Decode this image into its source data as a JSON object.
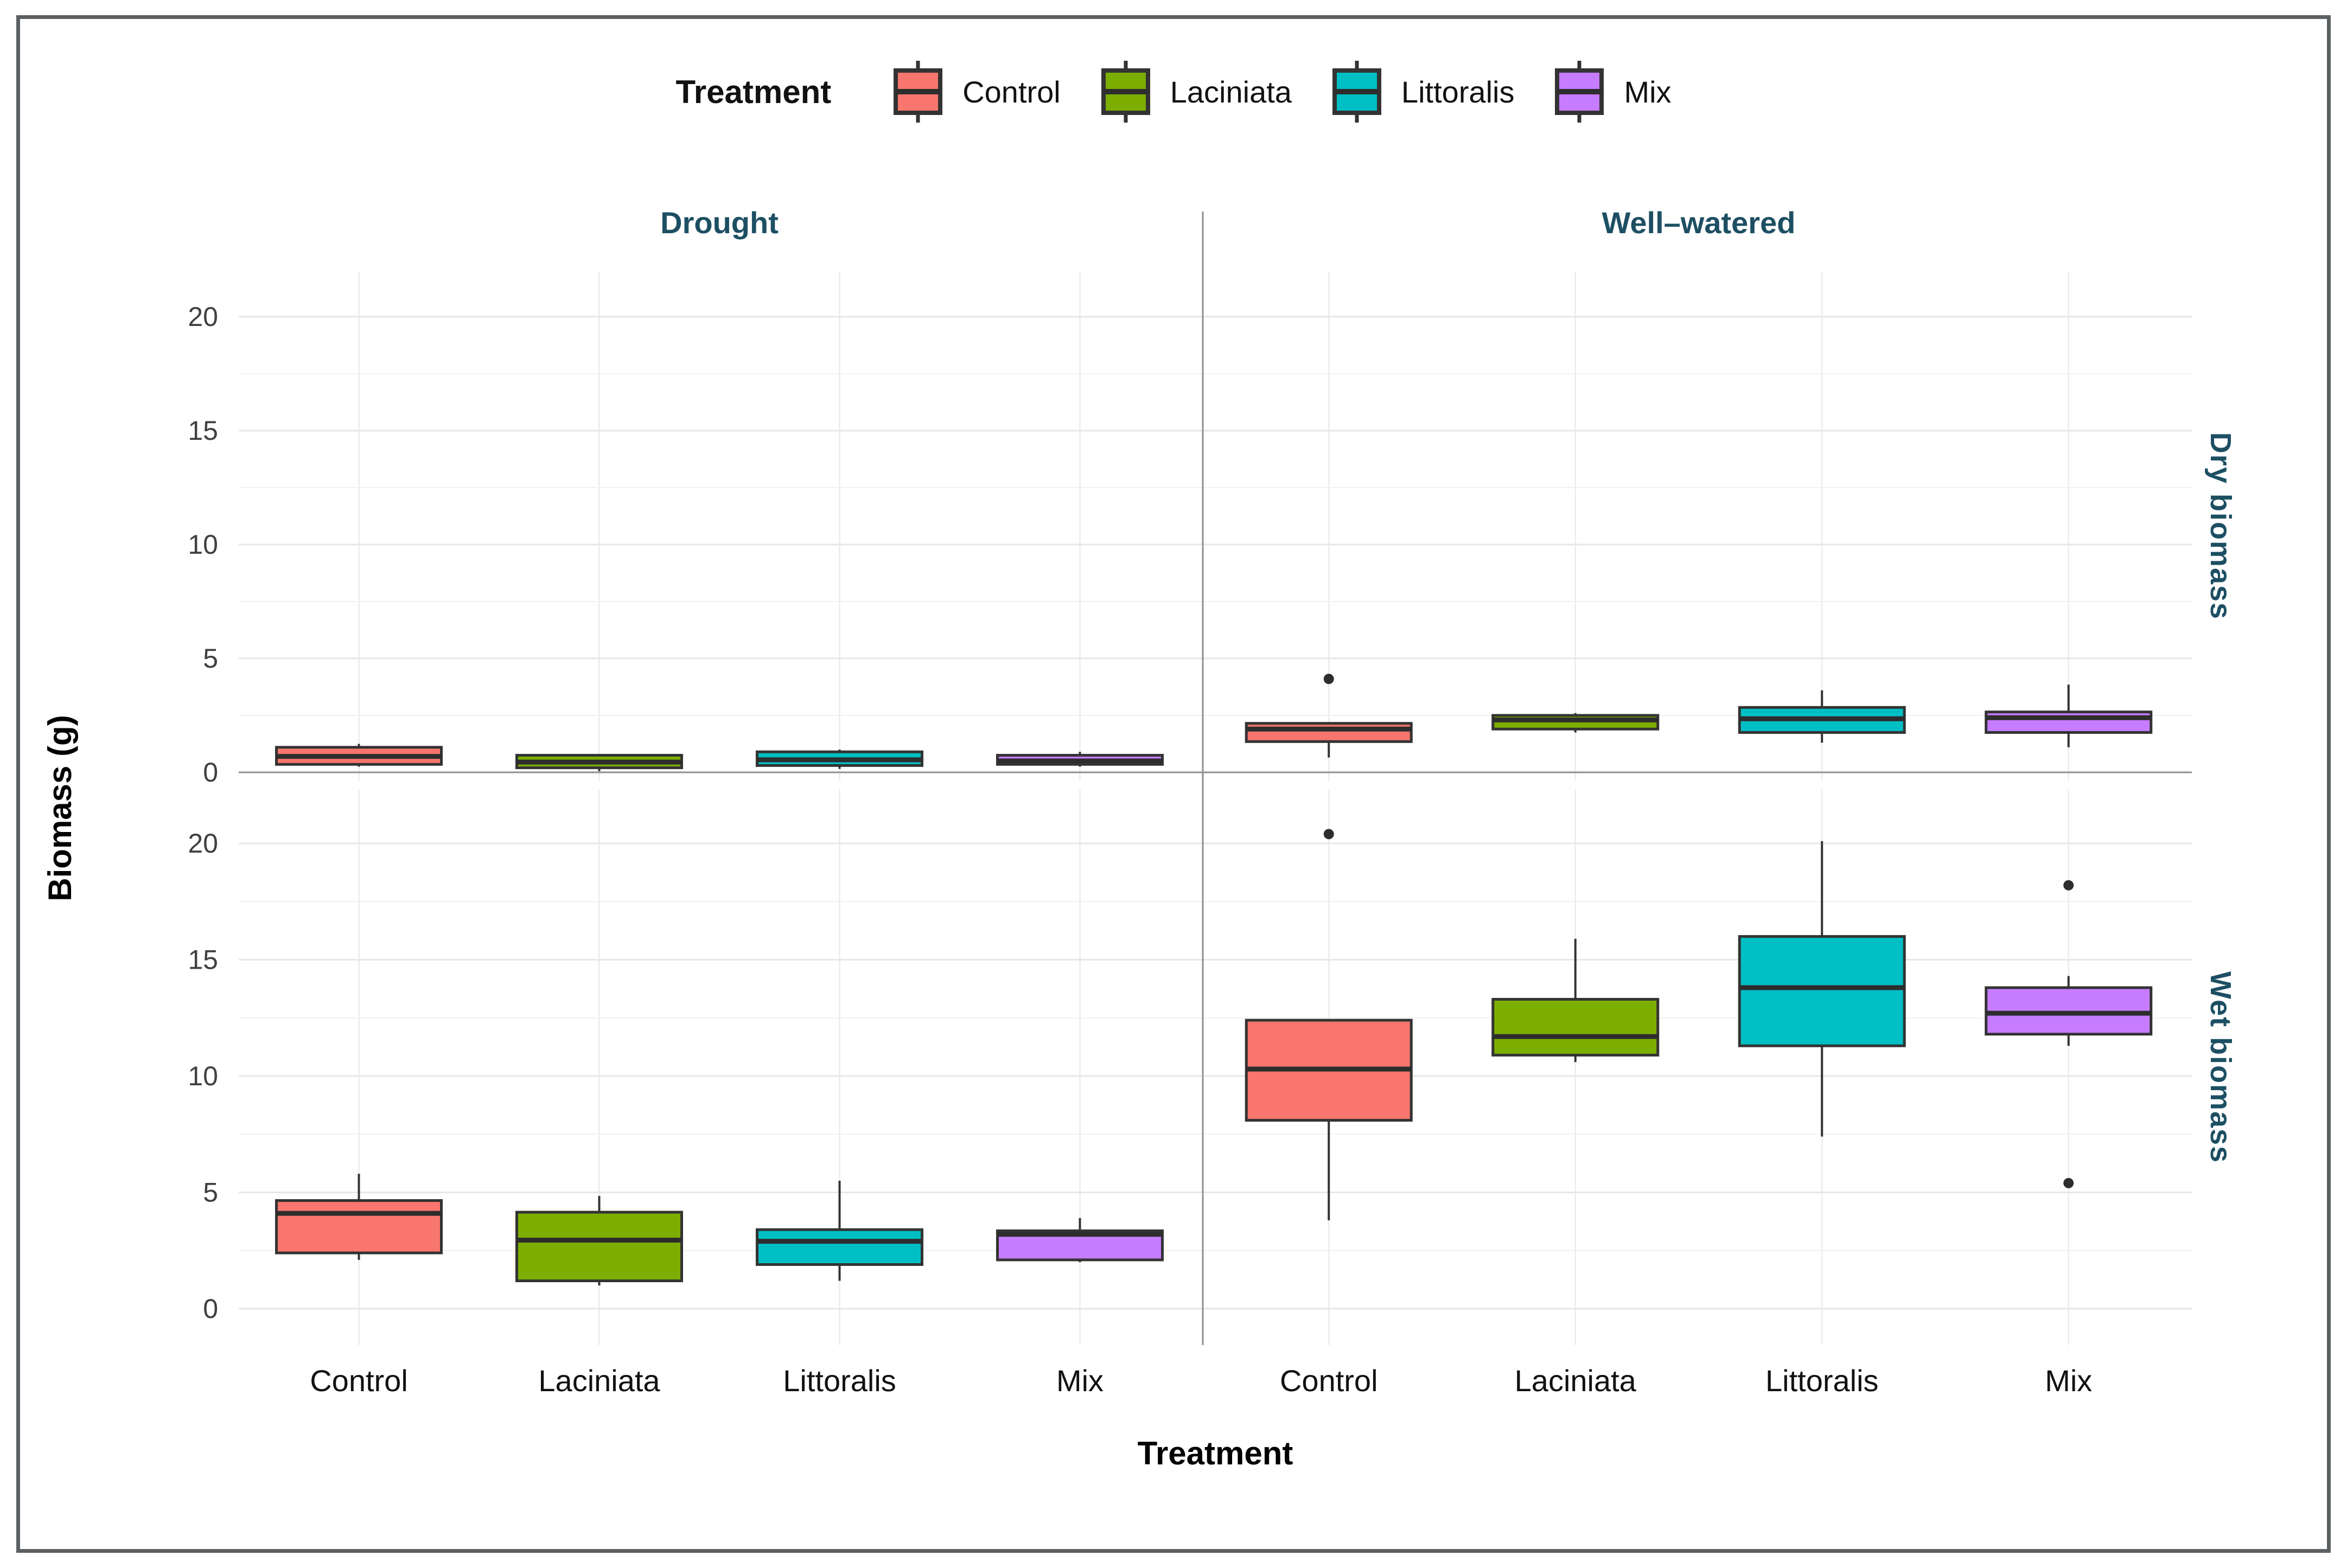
{
  "legend": {
    "title": "Treatment",
    "items": [
      {
        "label": "Control",
        "color": "#f8766d"
      },
      {
        "label": "Laciniata",
        "color": "#7cae00"
      },
      {
        "label": "Littoralis",
        "color": "#00bfc4"
      },
      {
        "label": "Mix",
        "color": "#c77cff"
      }
    ]
  },
  "facets": {
    "cols": [
      {
        "label": "Drought"
      },
      {
        "label": "Well–watered"
      }
    ],
    "rows": [
      {
        "label": "Dry biomass"
      },
      {
        "label": "Wet biomass"
      }
    ]
  },
  "axes": {
    "x_title": "Treatment",
    "y_title": "Biomass (g)",
    "y_ticks": [
      0,
      5,
      10,
      15,
      20
    ],
    "y_minor_ticks": [
      2.5,
      7.5,
      12.5,
      17.5
    ]
  },
  "style": {
    "box_border": "#333333",
    "median_color": "#2d2d2d",
    "outlier_color": "#2d2d2d",
    "gridline_major": "#e7e7e7",
    "gridline_minor": "#f1f1f1",
    "gridline_vertical": "#ececec",
    "panel_separator": "#8f8f8f",
    "strip_text": "#1d4f63",
    "frame_border": "#5c6063"
  },
  "chart_data": {
    "type": "boxplot",
    "categories": [
      "Control",
      "Laciniata",
      "Littoralis",
      "Mix"
    ],
    "palette": {
      "Control": "#f8766d",
      "Laciniata": "#7cae00",
      "Littoralis": "#00bfc4",
      "Mix": "#c77cff"
    },
    "xlabel": "Treatment",
    "ylabel": "Biomass (g)",
    "y_range_dry": [
      -0.5,
      22.0
    ],
    "y_range_wet": [
      -1.6,
      22.3
    ],
    "grid": true,
    "legend_position": "top",
    "panels": [
      {
        "col": "Drought",
        "row": "Dry biomass",
        "boxes": [
          {
            "treatment": "Control",
            "low": 0.25,
            "q1": 0.35,
            "median": 0.7,
            "q3": 1.1,
            "high": 1.25,
            "outliers": []
          },
          {
            "treatment": "Laciniata",
            "low": 0.05,
            "q1": 0.2,
            "median": 0.45,
            "q3": 0.75,
            "high": 0.8,
            "outliers": []
          },
          {
            "treatment": "Littoralis",
            "low": 0.15,
            "q1": 0.3,
            "median": 0.55,
            "q3": 0.9,
            "high": 1.0,
            "outliers": []
          },
          {
            "treatment": "Mix",
            "low": 0.25,
            "q1": 0.35,
            "median": 0.5,
            "q3": 0.75,
            "high": 0.9,
            "outliers": []
          }
        ]
      },
      {
        "col": "Well–watered",
        "row": "Dry biomass",
        "boxes": [
          {
            "treatment": "Control",
            "low": 0.65,
            "q1": 1.35,
            "median": 1.9,
            "q3": 2.15,
            "high": 2.15,
            "outliers": [
              4.1
            ]
          },
          {
            "treatment": "Laciniata",
            "low": 1.75,
            "q1": 1.9,
            "median": 2.3,
            "q3": 2.5,
            "high": 2.6,
            "outliers": []
          },
          {
            "treatment": "Littoralis",
            "low": 1.3,
            "q1": 1.75,
            "median": 2.35,
            "q3": 2.85,
            "high": 3.6,
            "outliers": []
          },
          {
            "treatment": "Mix",
            "low": 1.1,
            "q1": 1.75,
            "median": 2.4,
            "q3": 2.65,
            "high": 3.85,
            "outliers": []
          }
        ]
      },
      {
        "col": "Drought",
        "row": "Wet biomass",
        "boxes": [
          {
            "treatment": "Control",
            "low": 2.1,
            "q1": 2.4,
            "median": 4.1,
            "q3": 4.65,
            "high": 5.8,
            "outliers": []
          },
          {
            "treatment": "Laciniata",
            "low": 1.0,
            "q1": 1.2,
            "median": 2.95,
            "q3": 4.15,
            "high": 4.85,
            "outliers": []
          },
          {
            "treatment": "Littoralis",
            "low": 1.2,
            "q1": 1.9,
            "median": 2.9,
            "q3": 3.4,
            "high": 5.5,
            "outliers": []
          },
          {
            "treatment": "Mix",
            "low": 2.0,
            "q1": 2.1,
            "median": 3.2,
            "q3": 3.35,
            "high": 3.9,
            "outliers": []
          }
        ]
      },
      {
        "col": "Well–watered",
        "row": "Wet biomass",
        "boxes": [
          {
            "treatment": "Control",
            "low": 3.8,
            "q1": 8.1,
            "median": 10.3,
            "q3": 12.4,
            "high": 12.4,
            "outliers": [
              20.4
            ]
          },
          {
            "treatment": "Laciniata",
            "low": 10.6,
            "q1": 10.9,
            "median": 11.7,
            "q3": 13.3,
            "high": 15.9,
            "outliers": []
          },
          {
            "treatment": "Littoralis",
            "low": 7.4,
            "q1": 11.3,
            "median": 13.8,
            "q3": 16.0,
            "high": 20.1,
            "outliers": []
          },
          {
            "treatment": "Mix",
            "low": 11.3,
            "q1": 11.8,
            "median": 12.7,
            "q3": 13.8,
            "high": 14.3,
            "outliers": [
              18.2,
              5.4
            ]
          }
        ]
      }
    ]
  }
}
